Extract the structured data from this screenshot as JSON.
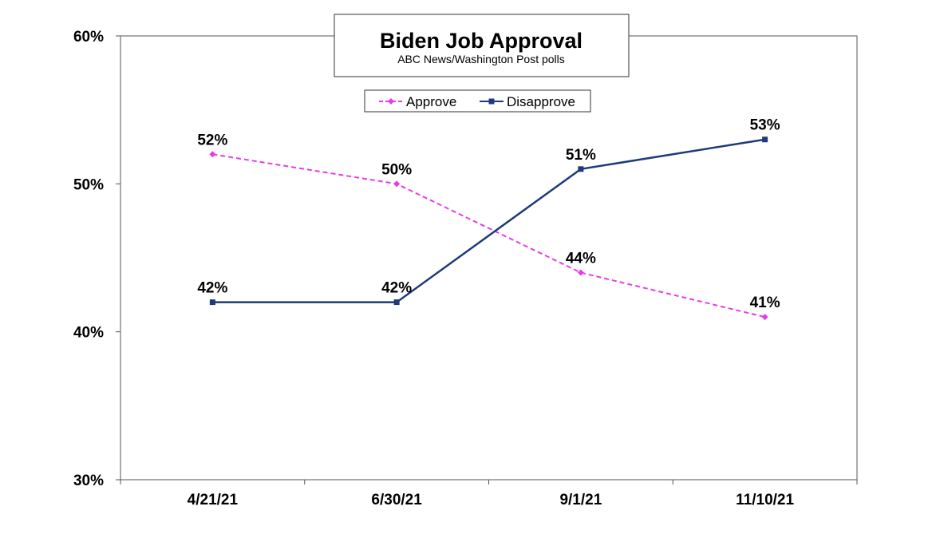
{
  "chart_data": {
    "type": "line",
    "title": "Biden Job Approval",
    "subtitle": "ABC News/Washington  Post polls",
    "categories": [
      "4/21/21",
      "6/30/21",
      "9/1/21",
      "11/10/21"
    ],
    "series": [
      {
        "name": "Approve",
        "values": [
          52,
          50,
          44,
          41
        ],
        "color": "#e83ae8",
        "dash": true,
        "marker": "diamond"
      },
      {
        "name": "Disapprove",
        "values": [
          42,
          42,
          51,
          53
        ],
        "color": "#1f3a7a",
        "dash": false,
        "marker": "square"
      }
    ],
    "ylim": [
      30,
      60
    ],
    "yticks": [
      30,
      40,
      50,
      60
    ],
    "ytick_labels": [
      "30%",
      "40%",
      "50%",
      "60%"
    ],
    "data_label_suffix": "%",
    "legend_position": "top-center",
    "grid": false
  }
}
